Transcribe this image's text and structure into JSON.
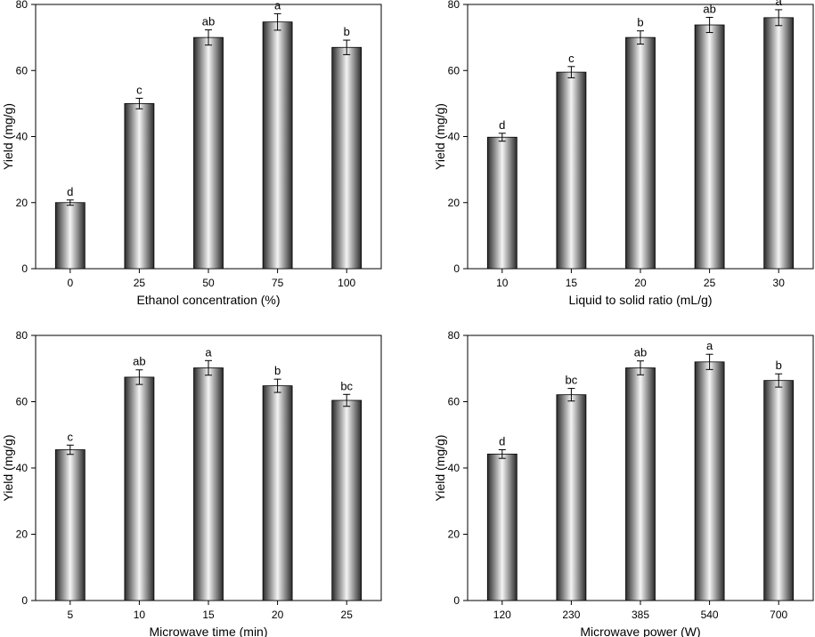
{
  "figure": {
    "background": "#ffffff",
    "bar_dark": "#2a2a2a",
    "bar_light": "#f4f4f4"
  },
  "chart_data": [
    {
      "type": "bar",
      "xlabel": "Ethanol concentration (%)",
      "ylabel": "Yield (mg/g)",
      "ylim": [
        0,
        80
      ],
      "yticks": [
        "0",
        "20",
        "40",
        "60",
        "80"
      ],
      "categories": [
        "0",
        "25",
        "50",
        "75",
        "100"
      ],
      "values": [
        20.0,
        50.0,
        70.0,
        74.7,
        67.0
      ],
      "errors": [
        0.8,
        1.6,
        2.3,
        2.5,
        2.2
      ],
      "significance": [
        "d",
        "c",
        "ab",
        "a",
        "b"
      ]
    },
    {
      "type": "bar",
      "xlabel": "Liquid to solid ratio (mL/g)",
      "ylabel": "Yield (mg/g)",
      "ylim": [
        0,
        80
      ],
      "yticks": [
        "0",
        "20",
        "40",
        "60",
        "80"
      ],
      "categories": [
        "10",
        "15",
        "20",
        "25",
        "30"
      ],
      "values": [
        39.8,
        59.5,
        70.0,
        73.8,
        76.0
      ],
      "errors": [
        1.2,
        1.7,
        2.0,
        2.3,
        2.4
      ],
      "significance": [
        "d",
        "c",
        "b",
        "ab",
        "a"
      ]
    },
    {
      "type": "bar",
      "xlabel": "Microwave time (min)",
      "ylabel": "Yield (mg/g)",
      "ylim": [
        0,
        80
      ],
      "yticks": [
        "0",
        "20",
        "40",
        "60",
        "80"
      ],
      "categories": [
        "5",
        "10",
        "15",
        "20",
        "25"
      ],
      "values": [
        45.5,
        67.4,
        70.2,
        64.8,
        60.4
      ],
      "errors": [
        1.4,
        2.2,
        2.2,
        2.0,
        1.8
      ],
      "significance": [
        "c",
        "ab",
        "a",
        "b",
        "bc"
      ]
    },
    {
      "type": "bar",
      "xlabel": "Microwave power (W)",
      "ylabel": "Yield (mg/g)",
      "ylim": [
        0,
        80
      ],
      "yticks": [
        "0",
        "20",
        "40",
        "60",
        "80"
      ],
      "categories": [
        "120",
        "230",
        "385",
        "540",
        "700"
      ],
      "values": [
        44.2,
        62.1,
        70.2,
        72.0,
        66.4
      ],
      "errors": [
        1.3,
        1.9,
        2.1,
        2.3,
        2.0
      ],
      "significance": [
        "d",
        "bc",
        "ab",
        "a",
        "b"
      ]
    }
  ]
}
